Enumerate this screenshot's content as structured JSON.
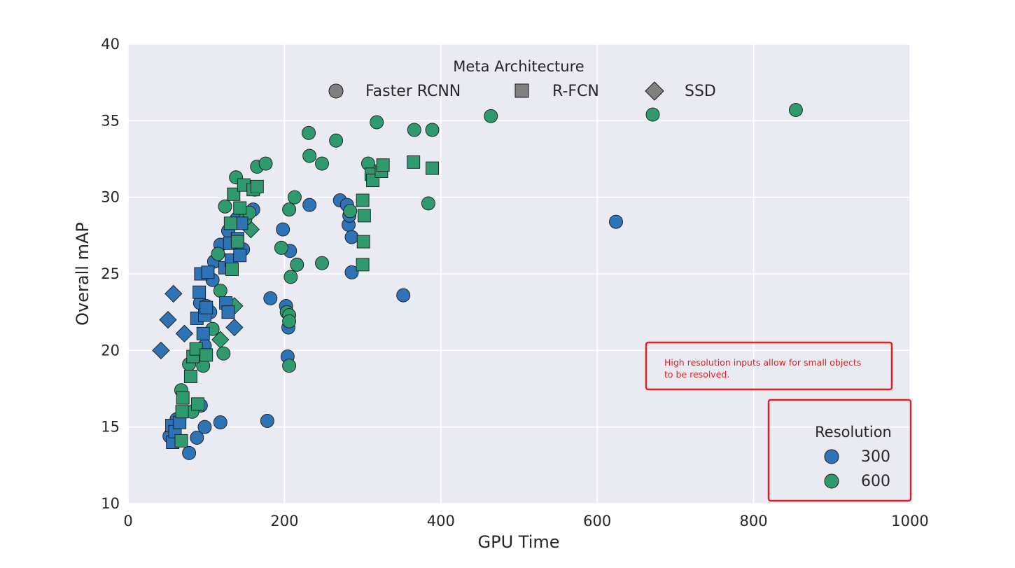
{
  "chart_data": {
    "type": "scatter",
    "xlabel": "GPU Time",
    "ylabel": "Overall mAP",
    "xlim": [
      0,
      1000
    ],
    "ylim": [
      10,
      40
    ],
    "xticks": [
      "0",
      "200",
      "400",
      "600",
      "800",
      "1000"
    ],
    "yticks": [
      "10",
      "15",
      "20",
      "25",
      "30",
      "35",
      "40"
    ],
    "grid": true,
    "colors": {
      "300": "#2e73b5",
      "600": "#2f9a6e",
      "background": "#eaeaf2",
      "grid": "#ffffff",
      "annotation": "#e02020",
      "marker_legend": "#808080"
    },
    "legend_marker": {
      "title": "Meta Architecture",
      "placement": "top-center",
      "entries": [
        {
          "label": "Faster RCNN",
          "marker": "circle"
        },
        {
          "label": "R-FCN",
          "marker": "square"
        },
        {
          "label": "SSD",
          "marker": "diamond"
        }
      ]
    },
    "legend_resolution": {
      "title": "Resolution",
      "placement": "bottom-right",
      "entries": [
        {
          "label": "300",
          "color_key": "300"
        },
        {
          "label": "600",
          "color_key": "600"
        }
      ]
    },
    "annotation": {
      "lines": [
        "High resolution inputs allow for small objects",
        "to be resolved."
      ],
      "placement": "lower-right"
    },
    "series": [
      {
        "arch": "ssd",
        "res": "300",
        "points": [
          [
            42,
            20
          ],
          [
            51,
            22
          ],
          [
            58,
            23.7
          ],
          [
            72,
            21.1
          ],
          [
            136,
            21.5
          ]
        ]
      },
      {
        "arch": "ssd",
        "res": "600",
        "points": [
          [
            118,
            20.7
          ],
          [
            136,
            22.9
          ],
          [
            157,
            27.9
          ]
        ]
      },
      {
        "arch": "faster_rcnn",
        "res": "300",
        "points": [
          [
            53,
            14.4
          ],
          [
            62,
            15.5
          ],
          [
            78,
            13.3
          ],
          [
            88,
            14.3
          ],
          [
            93,
            16.4
          ],
          [
            98,
            15
          ],
          [
            118,
            15.3
          ],
          [
            92,
            23.1
          ],
          [
            98,
            20.3
          ],
          [
            100,
            22.9
          ],
          [
            105,
            22.5
          ],
          [
            110,
            25.8
          ],
          [
            118,
            26.9
          ],
          [
            128,
            27.8
          ],
          [
            139,
            28.6
          ],
          [
            147,
            26.6
          ],
          [
            160,
            29.2
          ],
          [
            162,
            30.5
          ],
          [
            182,
            23.4
          ],
          [
            198,
            27.9
          ],
          [
            202,
            22.9
          ],
          [
            203,
            22.5
          ],
          [
            204,
            19.6
          ],
          [
            205,
            21.5
          ],
          [
            207,
            26.5
          ],
          [
            232,
            29.5
          ],
          [
            271,
            29.8
          ],
          [
            280,
            29.5
          ],
          [
            282,
            28.2
          ],
          [
            283,
            28.8
          ],
          [
            286,
            27.4
          ],
          [
            286,
            25.1
          ],
          [
            352,
            23.6
          ],
          [
            178,
            15.4
          ],
          [
            624,
            28.4
          ],
          [
            108,
            24.6
          ]
        ]
      },
      {
        "arch": "faster_rcnn",
        "res": "600",
        "points": [
          [
            68,
            17.4
          ],
          [
            78,
            19.1
          ],
          [
            82,
            16
          ],
          [
            96,
            19
          ],
          [
            108,
            21.4
          ],
          [
            115,
            26.3
          ],
          [
            118,
            23.9
          ],
          [
            122,
            19.8
          ],
          [
            124,
            29.4
          ],
          [
            138,
            31.3
          ],
          [
            150,
            28.6
          ],
          [
            155,
            29
          ],
          [
            165,
            32
          ],
          [
            176,
            32.2
          ],
          [
            196,
            26.7
          ],
          [
            203,
            22.5
          ],
          [
            206,
            22.3
          ],
          [
            206,
            21.9
          ],
          [
            206,
            19
          ],
          [
            206,
            29.2
          ],
          [
            208,
            24.8
          ],
          [
            213,
            30
          ],
          [
            216,
            25.6
          ],
          [
            231,
            34.2
          ],
          [
            232,
            32.7
          ],
          [
            248,
            32.2
          ],
          [
            248,
            25.7
          ],
          [
            266,
            33.7
          ],
          [
            284,
            29.1
          ],
          [
            307,
            32.2
          ],
          [
            318,
            34.9
          ],
          [
            366,
            34.4
          ],
          [
            384,
            29.6
          ],
          [
            389,
            34.4
          ],
          [
            464,
            35.3
          ],
          [
            671,
            35.4
          ],
          [
            854,
            35.7
          ]
        ]
      },
      {
        "arch": "rfcn",
        "res": "300",
        "points": [
          [
            56,
            15.1
          ],
          [
            57,
            14
          ],
          [
            60,
            14.7
          ],
          [
            66,
            15.3
          ],
          [
            88,
            22.1
          ],
          [
            91,
            23.8
          ],
          [
            93,
            25
          ],
          [
            96,
            21.1
          ],
          [
            98,
            22.3
          ],
          [
            100,
            22.8
          ],
          [
            102,
            25.1
          ],
          [
            124,
            25.4
          ],
          [
            125,
            23.1
          ],
          [
            128,
            22.5
          ],
          [
            130,
            27
          ],
          [
            132,
            25.9
          ],
          [
            140,
            27.3
          ],
          [
            143,
            26.2
          ],
          [
            145,
            28.3
          ]
        ]
      },
      {
        "arch": "rfcn",
        "res": "600",
        "points": [
          [
            68,
            14.1
          ],
          [
            69,
            16
          ],
          [
            70,
            16.9
          ],
          [
            80,
            18.3
          ],
          [
            83,
            19.6
          ],
          [
            87,
            20.1
          ],
          [
            89,
            16.5
          ],
          [
            100,
            19.7
          ],
          [
            131,
            28.3
          ],
          [
            133,
            25.3
          ],
          [
            135,
            30.2
          ],
          [
            140,
            27.1
          ],
          [
            143,
            29.3
          ],
          [
            148,
            30.8
          ],
          [
            160,
            30.5
          ],
          [
            165,
            30.7
          ],
          [
            300,
            25.6
          ],
          [
            300,
            29.8
          ],
          [
            301,
            27.1
          ],
          [
            302,
            28.8
          ],
          [
            311,
            31.5
          ],
          [
            313,
            31.1
          ],
          [
            324,
            31.7
          ],
          [
            326,
            32.1
          ],
          [
            365,
            32.3
          ],
          [
            389,
            31.9
          ]
        ]
      }
    ]
  }
}
